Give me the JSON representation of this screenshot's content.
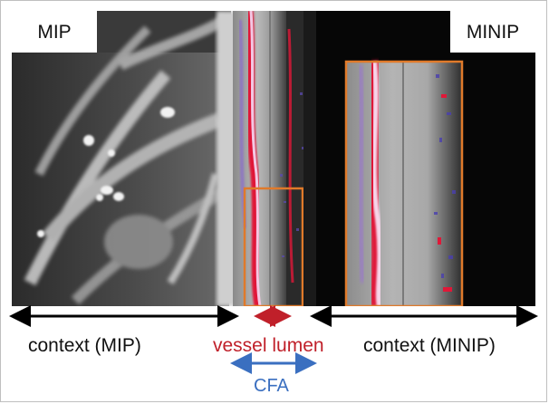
{
  "labels": {
    "mip": "MIP",
    "minip": "MINIP"
  },
  "captions": {
    "context_mip": "context (MIP)",
    "vessel_lumen": "vessel lumen",
    "context_minip": "context (MINIP)",
    "cfa": "CFA"
  },
  "colors": {
    "highlight_box": "#e07a2a",
    "vessel_lumen": "#c0202a",
    "cfa": "#3a6fc0",
    "context_arrow": "#000000"
  }
}
